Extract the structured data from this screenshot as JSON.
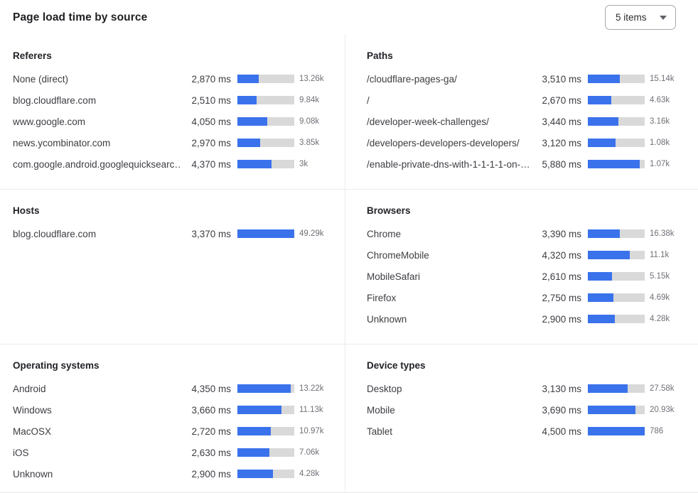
{
  "header": {
    "title": "Page load time by source",
    "items_dropdown": {
      "value": "5 items"
    }
  },
  "colors": {
    "bar_fill": "#3a72ec",
    "bar_track": "#d9d9d9"
  },
  "sections": [
    {
      "title": "Referers",
      "rows": [
        {
          "label": "None (direct)",
          "value": "2,870 ms",
          "count": "13.26k",
          "bar_pct": 38
        },
        {
          "label": "blog.cloudflare.com",
          "value": "2,510 ms",
          "count": "9.84k",
          "bar_pct": 34
        },
        {
          "label": "www.google.com",
          "value": "4,050 ms",
          "count": "9.08k",
          "bar_pct": 53
        },
        {
          "label": "news.ycombinator.com",
          "value": "2,970 ms",
          "count": "3.85k",
          "bar_pct": 40
        },
        {
          "label": "com.google.android.googlequicksearc…",
          "value": "4,370 ms",
          "count": "3k",
          "bar_pct": 60
        }
      ]
    },
    {
      "title": "Paths",
      "rows": [
        {
          "label": "/cloudflare-pages-ga/",
          "value": "3,510 ms",
          "count": "15.14k",
          "bar_pct": 56
        },
        {
          "label": "/",
          "value": "2,670 ms",
          "count": "4.63k",
          "bar_pct": 41
        },
        {
          "label": "/developer-week-challenges/",
          "value": "3,440 ms",
          "count": "3.16k",
          "bar_pct": 54
        },
        {
          "label": "/developers-developers-developers/",
          "value": "3,120 ms",
          "count": "1.08k",
          "bar_pct": 49
        },
        {
          "label": "/enable-private-dns-with-1-1-1-1-on-…",
          "value": "5,880 ms",
          "count": "1.07k",
          "bar_pct": 91
        }
      ]
    },
    {
      "title": "Hosts",
      "rows": [
        {
          "label": "blog.cloudflare.com",
          "value": "3,370 ms",
          "count": "49.29k",
          "bar_pct": 100
        }
      ]
    },
    {
      "title": "Browsers",
      "rows": [
        {
          "label": "Chrome",
          "value": "3,390 ms",
          "count": "16.38k",
          "bar_pct": 56
        },
        {
          "label": "ChromeMobile",
          "value": "4,320 ms",
          "count": "11.1k",
          "bar_pct": 74
        },
        {
          "label": "MobileSafari",
          "value": "2,610 ms",
          "count": "5.15k",
          "bar_pct": 42
        },
        {
          "label": "Firefox",
          "value": "2,750 ms",
          "count": "4.69k",
          "bar_pct": 45
        },
        {
          "label": "Unknown",
          "value": "2,900 ms",
          "count": "4.28k",
          "bar_pct": 48
        }
      ]
    },
    {
      "title": "Operating systems",
      "rows": [
        {
          "label": "Android",
          "value": "4,350 ms",
          "count": "13.22k",
          "bar_pct": 94
        },
        {
          "label": "Windows",
          "value": "3,660 ms",
          "count": "11.13k",
          "bar_pct": 78
        },
        {
          "label": "MacOSX",
          "value": "2,720 ms",
          "count": "10.97k",
          "bar_pct": 59
        },
        {
          "label": "iOS",
          "value": "2,630 ms",
          "count": "7.06k",
          "bar_pct": 56
        },
        {
          "label": "Unknown",
          "value": "2,900 ms",
          "count": "4.28k",
          "bar_pct": 62
        }
      ]
    },
    {
      "title": "Device types",
      "rows": [
        {
          "label": "Desktop",
          "value": "3,130 ms",
          "count": "27.58k",
          "bar_pct": 70
        },
        {
          "label": "Mobile",
          "value": "3,690 ms",
          "count": "20.93k",
          "bar_pct": 84
        },
        {
          "label": "Tablet",
          "value": "4,500 ms",
          "count": "786",
          "bar_pct": 100
        }
      ]
    }
  ]
}
